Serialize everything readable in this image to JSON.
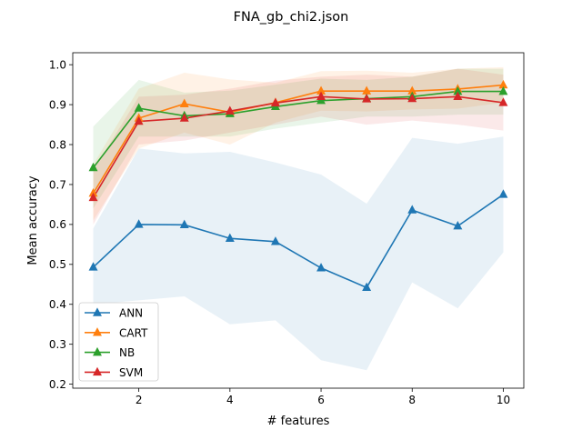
{
  "chart_data": {
    "type": "line",
    "title": "FNA_gb_chi2.json",
    "xlabel": "# features",
    "ylabel": "Mean accuracy",
    "xlim": [
      0.55,
      10.45
    ],
    "ylim": [
      0.19,
      1.03
    ],
    "x_ticks": [
      2,
      4,
      6,
      8,
      10
    ],
    "y_ticks": [
      0.2,
      0.3,
      0.4,
      0.5,
      0.6,
      0.7,
      0.8,
      0.9,
      1.0
    ],
    "x_tick_labels": [
      "2",
      "4",
      "6",
      "8",
      "10"
    ],
    "y_tick_labels": [
      "0.2",
      "0.3",
      "0.4",
      "0.5",
      "0.6",
      "0.7",
      "0.8",
      "0.9",
      "1.0"
    ],
    "grid": false,
    "legend_position": "lower-left",
    "x": [
      1,
      2,
      3,
      4,
      5,
      6,
      7,
      8,
      9,
      10
    ],
    "series": [
      {
        "name": "ANN",
        "color": "#1f77b4",
        "marker": "triangle-up",
        "values": [
          0.493,
          0.6,
          0.599,
          0.565,
          0.557,
          0.491,
          0.442,
          0.636,
          0.596,
          0.675
        ],
        "lower": [
          0.4,
          0.41,
          0.42,
          0.35,
          0.36,
          0.26,
          0.235,
          0.455,
          0.39,
          0.53
        ],
        "upper": [
          0.59,
          0.79,
          0.778,
          0.782,
          0.755,
          0.725,
          0.652,
          0.817,
          0.802,
          0.82
        ]
      },
      {
        "name": "CART",
        "color": "#ff7f0e",
        "marker": "triangle-up",
        "values": [
          0.678,
          0.866,
          0.902,
          0.881,
          0.905,
          0.934,
          0.934,
          0.934,
          0.939,
          0.949
        ],
        "lower": [
          0.61,
          0.79,
          0.83,
          0.8,
          0.855,
          0.885,
          0.883,
          0.888,
          0.89,
          0.905
        ],
        "upper": [
          0.75,
          0.94,
          0.98,
          0.963,
          0.955,
          0.984,
          0.985,
          0.98,
          0.99,
          0.994
        ]
      },
      {
        "name": "NB",
        "color": "#2ca02c",
        "marker": "triangle-up",
        "values": [
          0.742,
          0.891,
          0.872,
          0.877,
          0.895,
          0.91,
          0.915,
          0.92,
          0.933,
          0.933
        ],
        "lower": [
          0.64,
          0.82,
          0.82,
          0.82,
          0.84,
          0.855,
          0.87,
          0.87,
          0.875,
          0.875
        ],
        "upper": [
          0.845,
          0.962,
          0.93,
          0.935,
          0.95,
          0.965,
          0.962,
          0.97,
          0.99,
          0.99
        ]
      },
      {
        "name": "SVM",
        "color": "#d62728",
        "marker": "triangle-up",
        "values": [
          0.667,
          0.858,
          0.866,
          0.884,
          0.904,
          0.92,
          0.914,
          0.915,
          0.92,
          0.905
        ],
        "lower": [
          0.6,
          0.8,
          0.81,
          0.83,
          0.85,
          0.87,
          0.85,
          0.86,
          0.85,
          0.835
        ],
        "upper": [
          0.735,
          0.92,
          0.925,
          0.94,
          0.96,
          0.97,
          0.975,
          0.97,
          0.99,
          0.975
        ]
      }
    ]
  }
}
